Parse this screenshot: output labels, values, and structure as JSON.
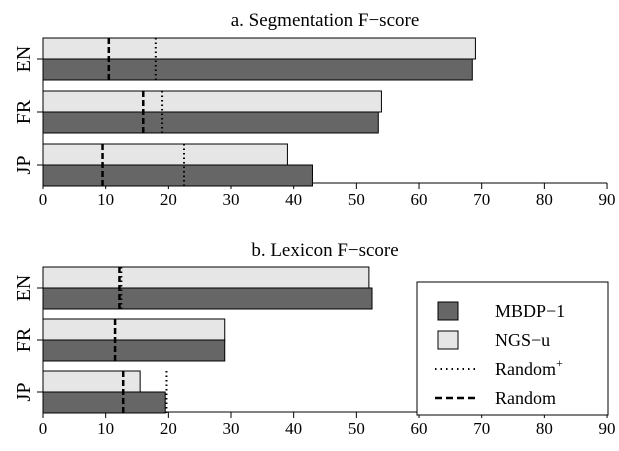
{
  "colors": {
    "mbdp": "#666666",
    "ngs": "#e6e6e6",
    "stroke": "#000000"
  },
  "legend": {
    "placement": "bottom-right",
    "entries": [
      {
        "label": "MBDP−1",
        "kind": "box",
        "color": "#666666"
      },
      {
        "label": "NGS−u",
        "kind": "box",
        "color": "#e6e6e6"
      },
      {
        "label": "Random",
        "sup": "+",
        "kind": "dotted"
      },
      {
        "label": "Random",
        "kind": "dashed"
      }
    ]
  },
  "chart_data": [
    {
      "type": "bar",
      "orientation": "horizontal",
      "title": "a. Segmentation F−score",
      "categories": [
        "EN",
        "FR",
        "JP"
      ],
      "xlim": [
        0,
        90
      ],
      "xticks": [
        0,
        10,
        20,
        30,
        40,
        50,
        60,
        70,
        80,
        90
      ],
      "series": [
        {
          "name": "NGS−u",
          "values": [
            69,
            54,
            39
          ]
        },
        {
          "name": "MBDP−1",
          "values": [
            68.5,
            53.5,
            43
          ]
        }
      ],
      "random_plus": [
        18,
        19,
        22.5
      ],
      "random": [
        10.5,
        16,
        9.5
      ]
    },
    {
      "type": "bar",
      "orientation": "horizontal",
      "title": "b. Lexicon F−score",
      "categories": [
        "EN",
        "FR",
        "JP"
      ],
      "xlim": [
        0,
        90
      ],
      "xticks": [
        0,
        10,
        20,
        30,
        40,
        50,
        60,
        70,
        80,
        90
      ],
      "series": [
        {
          "name": "NGS−u",
          "values": [
            52,
            29,
            15.5
          ]
        },
        {
          "name": "MBDP−1",
          "values": [
            52.5,
            29,
            19.5
          ]
        }
      ],
      "random_plus": [
        12.5,
        11.5,
        19.7
      ],
      "random": [
        12.2,
        11.5,
        12.8
      ]
    }
  ]
}
